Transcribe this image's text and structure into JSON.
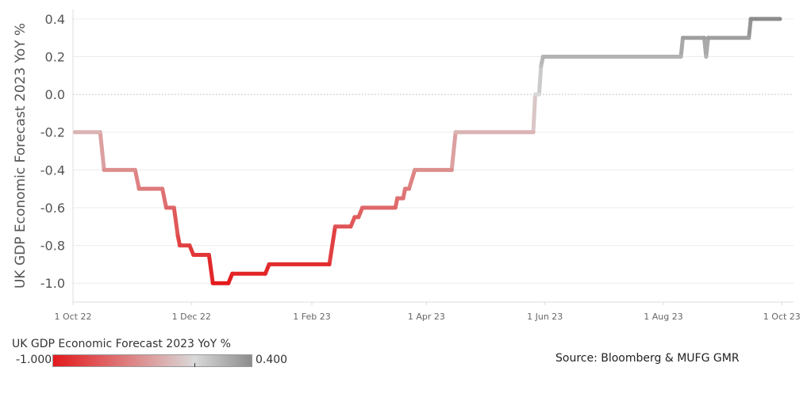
{
  "chart_data": {
    "type": "line",
    "title": "",
    "xlabel": "",
    "ylabel": "UK GDP Economic Forecast 2023 YoY %",
    "ylim": [
      -1.1,
      0.45
    ],
    "yticks": [
      0.4,
      0.2,
      0.0,
      -0.2,
      -0.4,
      -0.6,
      -0.8,
      -1.0
    ],
    "ytick_labels": [
      "0.4",
      "0.2",
      "0.0",
      "-0.2",
      "-0.4",
      "-0.6",
      "-0.8",
      "-1.0"
    ],
    "xlim": [
      "2022-10-01",
      "2023-10-07"
    ],
    "xticks": [
      "2022-10-01",
      "2022-12-01",
      "2023-02-01",
      "2023-04-01",
      "2023-06-01",
      "2023-08-01",
      "2023-10-01"
    ],
    "xtick_labels": [
      "1 Oct 22",
      "1 Dec 22",
      "1 Feb 23",
      "1 Apr 23",
      "1 Jun 23",
      "1 Aug 23",
      "1 Oct 23"
    ],
    "grid": true,
    "zero_line": "dotted",
    "color_scale": {
      "title": "UK GDP Economic Forecast 2023 YoY %",
      "min": -1.0,
      "max": 0.4,
      "min_label": "-1.000",
      "max_label": "0.400",
      "min_color": "#e31a1c",
      "mid_color": "#d9d9d9",
      "max_color": "#8c8c8c"
    },
    "series": [
      {
        "name": "",
        "points": [
          [
            "2022-10-02",
            -0.2
          ],
          [
            "2022-10-15",
            -0.2
          ],
          [
            "2022-10-17",
            -0.4
          ],
          [
            "2022-11-02",
            -0.4
          ],
          [
            "2022-11-04",
            -0.5
          ],
          [
            "2022-11-16",
            -0.5
          ],
          [
            "2022-11-18",
            -0.6
          ],
          [
            "2022-11-22",
            -0.6
          ],
          [
            "2022-11-24",
            -0.75
          ],
          [
            "2022-11-25",
            -0.8
          ],
          [
            "2022-11-30",
            -0.8
          ],
          [
            "2022-12-02",
            -0.85
          ],
          [
            "2022-12-10",
            -0.85
          ],
          [
            "2022-12-12",
            -1.0
          ],
          [
            "2022-12-20",
            -1.0
          ],
          [
            "2022-12-22",
            -0.95
          ],
          [
            "2023-01-08",
            -0.95
          ],
          [
            "2023-01-10",
            -0.9
          ],
          [
            "2023-02-10",
            -0.9
          ],
          [
            "2023-02-13",
            -0.7
          ],
          [
            "2023-02-21",
            -0.7
          ],
          [
            "2023-02-23",
            -0.65
          ],
          [
            "2023-02-25",
            -0.65
          ],
          [
            "2023-02-27",
            -0.6
          ],
          [
            "2023-03-16",
            -0.6
          ],
          [
            "2023-03-17",
            -0.55
          ],
          [
            "2023-03-20",
            -0.55
          ],
          [
            "2023-03-21",
            -0.5
          ],
          [
            "2023-03-23",
            -0.5
          ],
          [
            "2023-03-26",
            -0.4
          ],
          [
            "2023-04-14",
            -0.4
          ],
          [
            "2023-04-16",
            -0.2
          ],
          [
            "2023-05-26",
            -0.2
          ],
          [
            "2023-05-27",
            0.0
          ],
          [
            "2023-05-29",
            0.0
          ],
          [
            "2023-05-30",
            0.15
          ],
          [
            "2023-05-31",
            0.2
          ],
          [
            "2023-08-10",
            0.2
          ],
          [
            "2023-08-11",
            0.3
          ],
          [
            "2023-08-22",
            0.3
          ],
          [
            "2023-08-23",
            0.2
          ],
          [
            "2023-08-24",
            0.3
          ],
          [
            "2023-09-14",
            0.3
          ],
          [
            "2023-09-15",
            0.4
          ],
          [
            "2023-09-30",
            0.4
          ]
        ]
      }
    ]
  },
  "source": "Source: Bloomberg & MUFG GMR"
}
